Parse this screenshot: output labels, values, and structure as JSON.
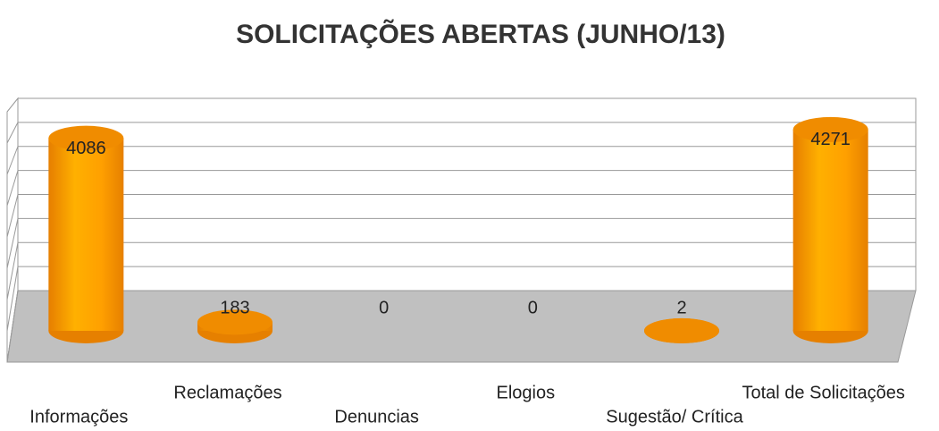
{
  "chart_data": {
    "type": "bar",
    "title": "SOLICITAÇÕES ABERTAS (JUNHO/13)",
    "categories": [
      "Informações",
      "Reclamações",
      "Denuncias",
      "Elogios",
      "Sugestão/ Crítica",
      "Total de Solicitações"
    ],
    "values": [
      4086,
      183,
      0,
      0,
      2,
      4271
    ],
    "color": "#ff9a00",
    "ylim": [
      0,
      4800
    ],
    "yticks": [
      0,
      600,
      1200,
      1800,
      2400,
      3000,
      3600,
      4200,
      4800
    ],
    "grid": true
  }
}
